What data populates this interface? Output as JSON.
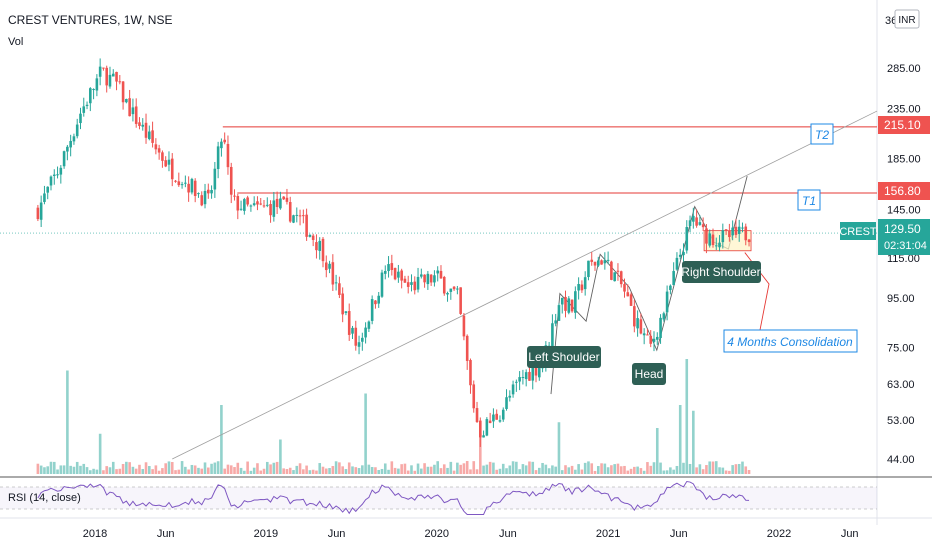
{
  "header": {
    "title": "CREST VENTURES, 1W, NSE",
    "volume_label": "Vol",
    "currency": "INR",
    "top_price_fragment": "36"
  },
  "rsi": {
    "label": "RSI (14, close)"
  },
  "colors": {
    "up": "#26a69a",
    "down": "#ef5350",
    "resistance": "#e53935",
    "trendline": "#9e9e9e",
    "rsi": "#7e57c2",
    "annotation_blue": "#1e88e5",
    "label_bg": "#2e5f55",
    "consolidation_fill": "#fff3c4"
  },
  "chart_data": {
    "type": "candlestick",
    "title": "CREST VENTURES, 1W, NSE",
    "y_scale": "log",
    "y_ticks": [
      "285.00",
      "235.00",
      "185.00",
      "145.00",
      "115.00",
      "95.00",
      "75.00",
      "63.00",
      "53.00",
      "44.00"
    ],
    "x_ticks": [
      "2018",
      "Jun",
      "2019",
      "Jun",
      "2020",
      "Jun",
      "2021",
      "Jun",
      "2022",
      "Jun"
    ],
    "price_path": [
      [
        "2017-09-01",
        145
      ],
      [
        "2017-10-15",
        175
      ],
      [
        "2017-12-01",
        230
      ],
      [
        "2018-01-15",
        280
      ],
      [
        "2018-02-15",
        265
      ],
      [
        "2018-03-15",
        235
      ],
      [
        "2018-05-01",
        200
      ],
      [
        "2018-06-15",
        175
      ],
      [
        "2018-08-01",
        160
      ],
      [
        "2018-09-01",
        150
      ],
      [
        "2018-10-01",
        210
      ],
      [
        "2018-10-20",
        150
      ],
      [
        "2018-12-01",
        145
      ],
      [
        "2019-02-01",
        148
      ],
      [
        "2019-03-15",
        138
      ],
      [
        "2019-05-01",
        120
      ],
      [
        "2019-06-15",
        90
      ],
      [
        "2019-07-15",
        75
      ],
      [
        "2019-09-15",
        110
      ],
      [
        "2019-11-01",
        100
      ],
      [
        "2020-01-01",
        105
      ],
      [
        "2020-02-15",
        95
      ],
      [
        "2020-03-15",
        60
      ],
      [
        "2020-04-01",
        50
      ],
      [
        "2020-05-15",
        55
      ],
      [
        "2020-07-01",
        65
      ],
      [
        "2020-08-15",
        70
      ],
      [
        "2020-09-20",
        95
      ],
      [
        "2020-10-15",
        90
      ],
      [
        "2020-11-20",
        110
      ],
      [
        "2020-12-20",
        115
      ],
      [
        "2021-02-01",
        100
      ],
      [
        "2021-03-01",
        85
      ],
      [
        "2021-04-01",
        75
      ],
      [
        "2021-05-01",
        90
      ],
      [
        "2021-06-01",
        115
      ],
      [
        "2021-07-01",
        140
      ],
      [
        "2021-07-20",
        130
      ],
      [
        "2021-08-20",
        126
      ],
      [
        "2021-10-01",
        128
      ],
      [
        "2021-10-29",
        129.5
      ]
    ],
    "volume_spikes": [
      [
        "2017-11-01",
        0.9
      ],
      [
        "2018-01-15",
        0.35
      ],
      [
        "2018-10-01",
        0.6
      ],
      [
        "2019-02-01",
        0.3
      ],
      [
        "2019-08-01",
        0.7
      ],
      [
        "2020-04-01",
        0.35
      ],
      [
        "2020-09-20",
        0.45
      ],
      [
        "2021-04-15",
        0.4
      ],
      [
        "2021-06-01",
        0.6
      ],
      [
        "2021-06-20",
        1.0
      ],
      [
        "2021-07-01",
        0.55
      ]
    ],
    "last_price": "129.50",
    "symbol": "CREST",
    "countdown": "02:31:04",
    "resistance_levels": [
      {
        "value": 215.1,
        "label": "215.10",
        "start": "2018-10-01",
        "target": "T2"
      },
      {
        "value": 156.8,
        "label": "156.80",
        "start": "2018-11-01",
        "target": "T1"
      }
    ],
    "annotations": {
      "left_shoulder": "Left Shoulder",
      "head": "Head",
      "right_shoulder": "Right Shoulder",
      "consolidation": "4 Months Consolidation",
      "t1": "T1",
      "t2": "T2"
    }
  }
}
